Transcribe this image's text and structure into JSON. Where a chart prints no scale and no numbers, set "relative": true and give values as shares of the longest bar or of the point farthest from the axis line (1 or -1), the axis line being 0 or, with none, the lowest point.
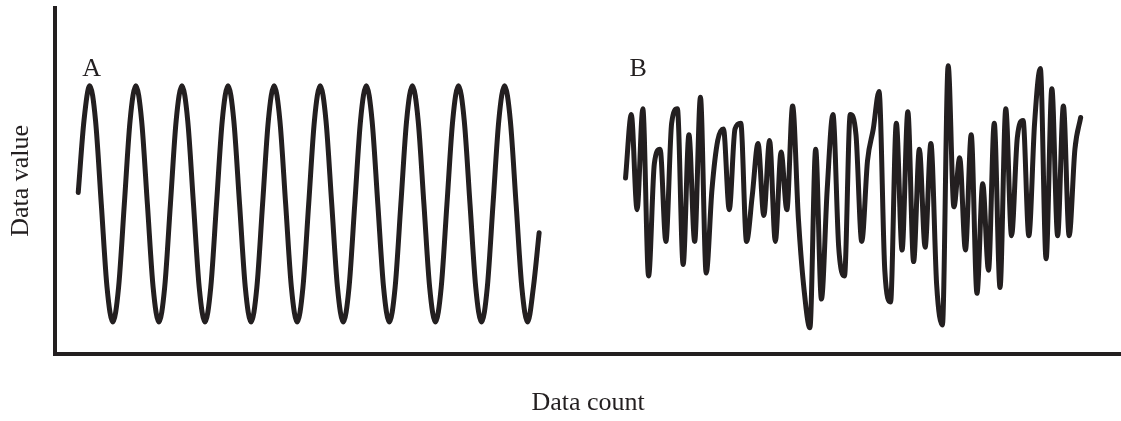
{
  "chart_data": {
    "type": "line",
    "relative": true,
    "xlabel": "Data count",
    "ylabel": "Data value",
    "legend": false,
    "marker": "none",
    "line_style": "solid",
    "grid": false,
    "tick_labels": false,
    "categories": [
      null,
      null,
      null,
      null,
      null,
      null,
      null,
      null,
      null,
      null,
      null,
      null,
      null,
      null,
      null,
      null,
      null,
      null,
      null,
      null,
      null,
      null,
      null,
      null,
      null,
      null,
      null,
      null,
      null,
      null,
      null,
      null,
      null,
      null,
      null,
      null,
      null,
      null,
      null,
      null,
      null,
      null,
      null,
      null,
      null,
      null,
      null,
      null,
      null,
      null,
      null,
      null,
      null,
      null,
      null,
      null,
      null,
      null,
      null,
      null,
      null,
      null,
      null,
      null,
      null,
      null,
      null,
      null,
      null,
      null,
      null,
      null,
      null,
      null,
      null,
      null,
      null,
      null,
      null,
      null,
      null,
      null,
      null,
      null,
      null,
      null,
      null,
      null,
      null,
      null,
      null,
      null,
      null,
      null,
      null,
      null,
      null,
      null,
      null,
      null,
      null,
      null,
      null,
      null,
      null,
      null,
      null,
      null,
      null,
      null,
      null,
      null,
      null,
      null,
      null,
      null,
      null,
      null,
      null,
      null,
      null,
      null,
      null,
      null,
      null,
      null,
      null,
      null,
      null,
      null,
      null,
      null,
      null,
      null,
      null,
      null,
      null,
      null,
      null,
      null,
      null,
      null,
      null,
      null,
      null,
      null,
      null,
      null,
      null,
      null,
      null,
      null,
      null,
      null,
      null,
      null,
      null,
      null,
      null,
      null,
      null,
      null,
      null,
      null,
      null,
      null,
      null,
      null,
      null,
      null,
      null,
      null,
      null,
      null,
      null,
      null,
      null,
      null,
      null,
      null,
      null,
      null,
      null,
      null,
      null,
      null
    ],
    "series": [
      {
        "name": "A",
        "color": "#231f20",
        "values": [
          null,
          null,
          null,
          null,
          0.56,
          0.81,
          0.93,
          0.81,
          0.52,
          0.23,
          0.11,
          0.23,
          0.52,
          0.81,
          0.93,
          0.81,
          0.52,
          0.23,
          0.11,
          0.23,
          0.52,
          0.81,
          0.93,
          0.81,
          0.52,
          0.23,
          0.11,
          0.23,
          0.52,
          0.81,
          0.93,
          0.81,
          0.52,
          0.23,
          0.11,
          0.23,
          0.52,
          0.81,
          0.93,
          0.81,
          0.52,
          0.23,
          0.11,
          0.23,
          0.52,
          0.81,
          0.93,
          0.81,
          0.52,
          0.23,
          0.11,
          0.23,
          0.52,
          0.81,
          0.93,
          0.81,
          0.52,
          0.23,
          0.11,
          0.23,
          0.52,
          0.81,
          0.93,
          0.81,
          0.52,
          0.23,
          0.11,
          0.23,
          0.52,
          0.81,
          0.93,
          0.81,
          0.52,
          0.23,
          0.11,
          0.23,
          0.52,
          0.81,
          0.93,
          0.81,
          0.52,
          0.23,
          0.11,
          0.23,
          0.42,
          null,
          null,
          null,
          null,
          null,
          null,
          null,
          null,
          null,
          null,
          null,
          null,
          null,
          null,
          null,
          null,
          null,
          null,
          null,
          null,
          null,
          null,
          null,
          null,
          null,
          null,
          null,
          null,
          null,
          null,
          null,
          null,
          null,
          null,
          null,
          null,
          null,
          null,
          null,
          null,
          null,
          null,
          null,
          null,
          null,
          null,
          null,
          null,
          null,
          null,
          null,
          null,
          null,
          null,
          null,
          null,
          null,
          null,
          null,
          null,
          null,
          null,
          null,
          null,
          null,
          null,
          null,
          null,
          null,
          null,
          null,
          null,
          null,
          null,
          null,
          null,
          null,
          null,
          null,
          null,
          null,
          null,
          null,
          null,
          null,
          null,
          null,
          null,
          null,
          null,
          null,
          null,
          null,
          null,
          null,
          null,
          null,
          null,
          null,
          null,
          null
        ]
      },
      {
        "name": "B",
        "color": "#231f20",
        "values": [
          null,
          null,
          null,
          null,
          null,
          null,
          null,
          null,
          null,
          null,
          null,
          null,
          null,
          null,
          null,
          null,
          null,
          null,
          null,
          null,
          null,
          null,
          null,
          null,
          null,
          null,
          null,
          null,
          null,
          null,
          null,
          null,
          null,
          null,
          null,
          null,
          null,
          null,
          null,
          null,
          null,
          null,
          null,
          null,
          null,
          null,
          null,
          null,
          null,
          null,
          null,
          null,
          null,
          null,
          null,
          null,
          null,
          null,
          null,
          null,
          null,
          null,
          null,
          null,
          null,
          null,
          null,
          null,
          null,
          null,
          null,
          null,
          null,
          null,
          null,
          null,
          null,
          null,
          null,
          null,
          null,
          null,
          null,
          null,
          null,
          null,
          null,
          null,
          null,
          null,
          null,
          null,
          null,
          null,
          null,
          null,
          null,
          null,
          null,
          0.61,
          0.83,
          0.5,
          0.85,
          0.27,
          0.66,
          0.71,
          0.39,
          0.8,
          0.85,
          0.31,
          0.76,
          0.39,
          0.89,
          0.28,
          0.57,
          0.74,
          0.78,
          0.5,
          0.78,
          0.8,
          0.39,
          0.55,
          0.73,
          0.48,
          0.74,
          0.39,
          0.7,
          0.5,
          0.86,
          0.47,
          0.22,
          0.09,
          0.71,
          0.19,
          0.57,
          0.83,
          0.37,
          0.27,
          0.83,
          0.76,
          0.39,
          0.67,
          0.78,
          0.91,
          0.29,
          0.18,
          0.8,
          0.36,
          0.84,
          0.32,
          0.71,
          0.37,
          0.73,
          0.24,
          0.1,
          1.0,
          0.51,
          0.68,
          0.36,
          0.76,
          0.21,
          0.59,
          0.29,
          0.8,
          0.23,
          0.85,
          0.41,
          0.75,
          0.81,
          0.41,
          0.8,
          0.99,
          0.33,
          0.92,
          0.41,
          0.86,
          0.41,
          0.71,
          0.82,
          null,
          null,
          null,
          null,
          null,
          null,
          null
        ]
      }
    ]
  }
}
